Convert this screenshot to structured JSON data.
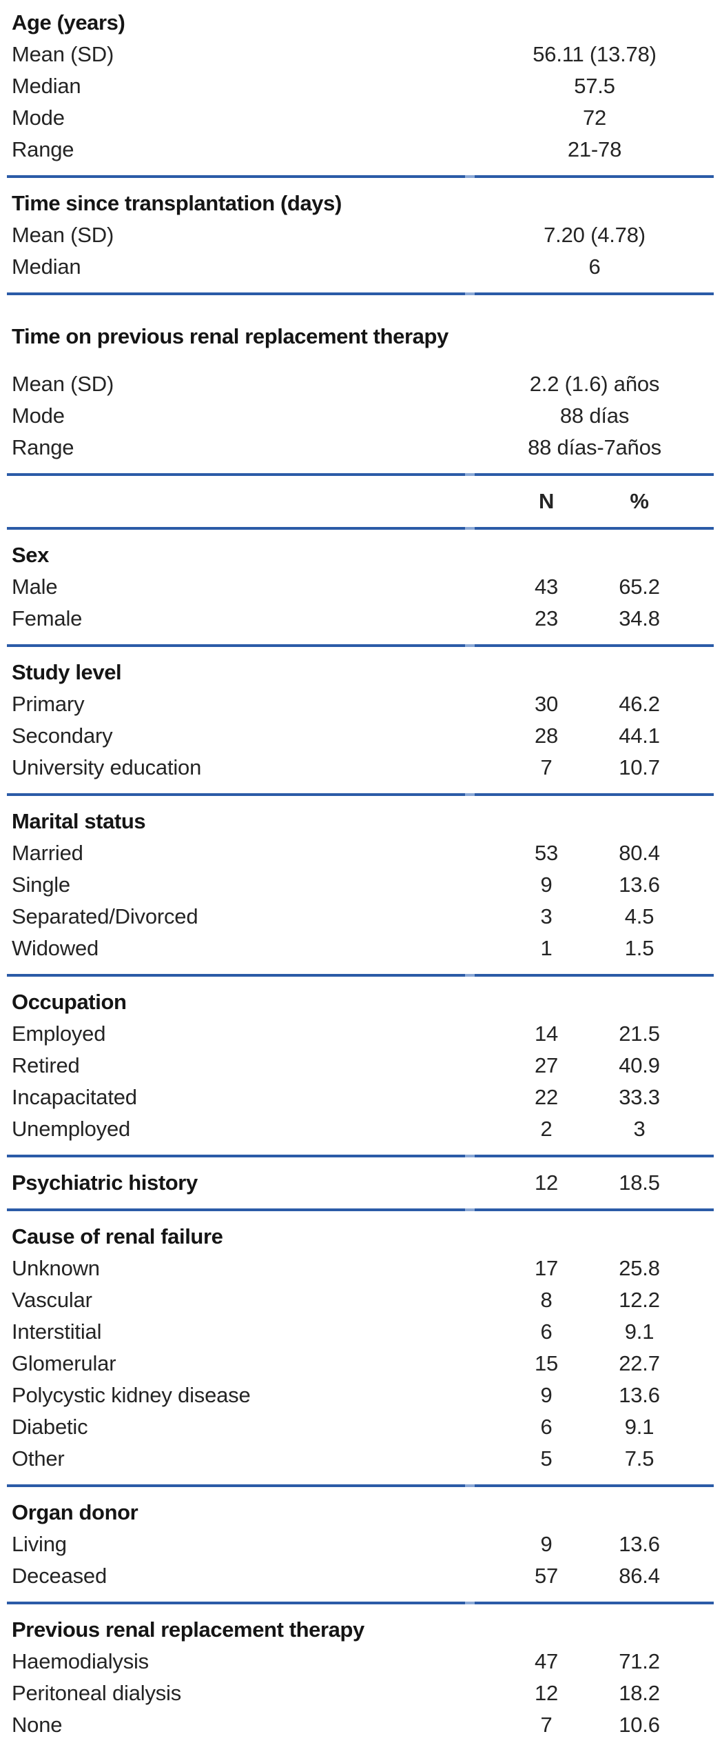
{
  "colors": {
    "rule_blue": "#2b5ba7",
    "text": "#242424",
    "heading_text": "#151515",
    "background": "#ffffff"
  },
  "header": {
    "n_label": "N",
    "pct_label": "%"
  },
  "sections": [
    {
      "kind": "summary",
      "title": "Age (years)",
      "rows": [
        {
          "label": "Mean (SD)",
          "value": "56.11 (13.78)"
        },
        {
          "label": "Median",
          "value": "57.5"
        },
        {
          "label": "Mode",
          "value": "72"
        },
        {
          "label": "Range",
          "value": "21-78"
        }
      ]
    },
    {
      "kind": "summary",
      "title": "Time since transplantation (days)",
      "rows": [
        {
          "label": "Mean (SD)",
          "value": "7.20 (4.78)"
        },
        {
          "label": "Median",
          "value": "6"
        }
      ]
    },
    {
      "kind": "summary",
      "title": "Time on previous renal replacement therapy",
      "rows": [
        {
          "label": "Mean (SD)",
          "value": "2.2 (1.6) años"
        },
        {
          "label": "Mode",
          "value": "88 días"
        },
        {
          "label": "Range",
          "value": "88 días-7años"
        }
      ]
    },
    {
      "kind": "np",
      "title": "Sex",
      "rows": [
        {
          "label": "Male",
          "n": "43",
          "pct": "65.2"
        },
        {
          "label": "Female",
          "n": "23",
          "pct": "34.8"
        }
      ]
    },
    {
      "kind": "np",
      "title": "Study level",
      "rows": [
        {
          "label": "Primary",
          "n": "30",
          "pct": "46.2"
        },
        {
          "label": "Secondary",
          "n": "28",
          "pct": "44.1"
        },
        {
          "label": "University education",
          "n": "7",
          "pct": "10.7"
        }
      ]
    },
    {
      "kind": "np",
      "title": "Marital status",
      "rows": [
        {
          "label": "Married",
          "n": "53",
          "pct": "80.4"
        },
        {
          "label": "Single",
          "n": "9",
          "pct": "13.6"
        },
        {
          "label": "Separated/Divorced",
          "n": "3",
          "pct": "4.5"
        },
        {
          "label": "Widowed",
          "n": "1",
          "pct": "1.5"
        }
      ]
    },
    {
      "kind": "np",
      "title": "Occupation",
      "rows": [
        {
          "label": "Employed",
          "n": "14",
          "pct": "21.5"
        },
        {
          "label": "Retired",
          "n": "27",
          "pct": "40.9"
        },
        {
          "label": "Incapacitated",
          "n": "22",
          "pct": "33.3"
        },
        {
          "label": "Unemployed",
          "n": "2",
          "pct": "3"
        }
      ]
    },
    {
      "kind": "np-single",
      "title": "Psychiatric history",
      "n": "12",
      "pct": "18.5"
    },
    {
      "kind": "np",
      "title": "Cause of renal failure",
      "rows": [
        {
          "label": "Unknown",
          "n": "17",
          "pct": "25.8"
        },
        {
          "label": "Vascular",
          "n": "8",
          "pct": "12.2"
        },
        {
          "label": "Interstitial",
          "n": "6",
          "pct": "9.1"
        },
        {
          "label": "Glomerular",
          "n": "15",
          "pct": "22.7"
        },
        {
          "label": "Polycystic kidney disease",
          "n": "9",
          "pct": "13.6"
        },
        {
          "label": "Diabetic",
          "n": "6",
          "pct": "9.1"
        },
        {
          "label": "Other",
          "n": "5",
          "pct": "7.5"
        }
      ]
    },
    {
      "kind": "np",
      "title": "Organ donor",
      "rows": [
        {
          "label": "Living",
          "n": "9",
          "pct": "13.6"
        },
        {
          "label": "Deceased",
          "n": "57",
          "pct": "86.4"
        }
      ]
    },
    {
      "kind": "np",
      "title": "Previous renal replacement therapy",
      "rows": [
        {
          "label": "Haemodialysis",
          "n": "47",
          "pct": "71.2"
        },
        {
          "label": "Peritoneal dialysis",
          "n": "12",
          "pct": "18.2"
        },
        {
          "label": "None",
          "n": "7",
          "pct": "10.6"
        }
      ]
    }
  ]
}
